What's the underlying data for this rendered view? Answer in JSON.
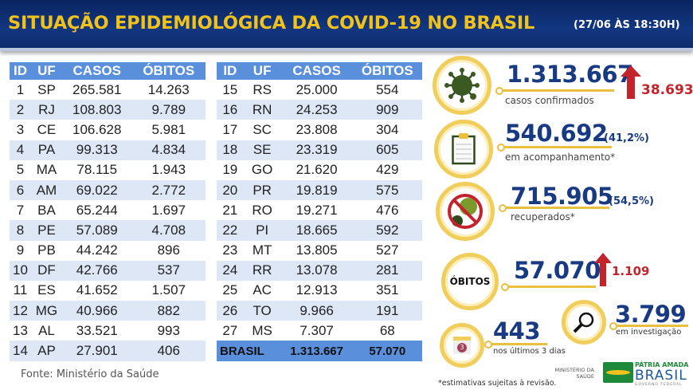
{
  "header": {
    "title": "SITUAÇÃO EPIDEMIOLÓGICA DA COVID-19 NO BRASIL",
    "date": "(27/06 ÀS 18:30H)"
  },
  "table": {
    "columns": [
      "ID",
      "UF",
      "CASOS",
      "ÓBITOS"
    ],
    "left": [
      [
        "1",
        "SP",
        "265.581",
        "14.263"
      ],
      [
        "2",
        "RJ",
        "108.803",
        "9.789"
      ],
      [
        "3",
        "CE",
        "106.628",
        "5.981"
      ],
      [
        "4",
        "PA",
        "99.313",
        "4.834"
      ],
      [
        "5",
        "MA",
        "78.115",
        "1.943"
      ],
      [
        "6",
        "AM",
        "69.022",
        "2.772"
      ],
      [
        "7",
        "BA",
        "65.244",
        "1.697"
      ],
      [
        "8",
        "PE",
        "57.089",
        "4.708"
      ],
      [
        "9",
        "PB",
        "44.242",
        "896"
      ],
      [
        "10",
        "DF",
        "42.766",
        "537"
      ],
      [
        "11",
        "ES",
        "41.652",
        "1.507"
      ],
      [
        "12",
        "MG",
        "40.966",
        "882"
      ],
      [
        "13",
        "AL",
        "33.521",
        "993"
      ],
      [
        "14",
        "AP",
        "27.901",
        "406"
      ]
    ],
    "right": [
      [
        "15",
        "RS",
        "25.000",
        "554"
      ],
      [
        "16",
        "RN",
        "24.253",
        "909"
      ],
      [
        "17",
        "SC",
        "23.808",
        "304"
      ],
      [
        "18",
        "SE",
        "23.319",
        "605"
      ],
      [
        "19",
        "GO",
        "21.620",
        "429"
      ],
      [
        "20",
        "PR",
        "19.819",
        "575"
      ],
      [
        "21",
        "RO",
        "19.271",
        "476"
      ],
      [
        "22",
        "PI",
        "18.665",
        "592"
      ],
      [
        "23",
        "MT",
        "13.805",
        "527"
      ],
      [
        "24",
        "RR",
        "13.078",
        "281"
      ],
      [
        "25",
        "AC",
        "12.913",
        "351"
      ],
      [
        "26",
        "TO",
        "9.966",
        "191"
      ],
      [
        "27",
        "MS",
        "7.307",
        "68"
      ]
    ],
    "total": {
      "label": "BRASIL",
      "casos": "1.313.667",
      "obitos": "57.070"
    }
  },
  "source": "Fonte: Ministério da Saúde",
  "stats": {
    "confirmed": {
      "value": "1.313.667",
      "label": "casos confirmados",
      "increase": "38.693"
    },
    "monitoring": {
      "value": "540.692",
      "pct": "(41,2%)",
      "label": "em acompanhamento*"
    },
    "recovered": {
      "value": "715.905",
      "pct": "(54,5%)",
      "label": "recuperados*"
    },
    "deaths": {
      "circle_label": "ÓBITOS",
      "value": "57.070",
      "increase": "1.109"
    },
    "recent": {
      "value": "443",
      "label": "nos últimos 3 dias",
      "calendar": "3"
    },
    "investigation": {
      "value": "3.799",
      "label": "em investigação"
    }
  },
  "footnote": "*estimativas sujeitas à revisão.",
  "logos": {
    "ministry": "MINISTÉRIO DA SAÚDE",
    "brand_top": "PÁTRIA AMADA",
    "brand_main": "BRASIL",
    "brand_sub": "GOVERNO FEDERAL"
  },
  "colors": {
    "navy": "#123780",
    "gold": "#f2c21c",
    "table_header": "#5a8fdc",
    "red": "#c3232b"
  }
}
